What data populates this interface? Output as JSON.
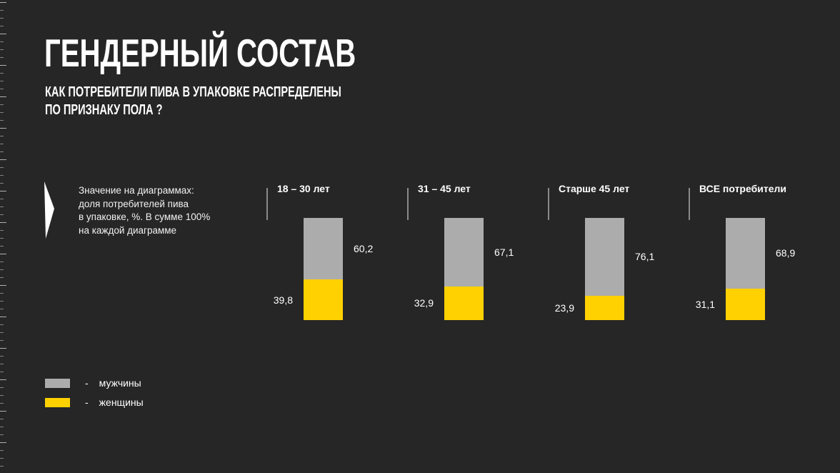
{
  "slide": {
    "title": "ГЕНДЕРНЫЙ СОСТАВ",
    "subtitle": "КАК ПОТРЕБИТЕЛИ ПИВА В УПАКОВКЕ РАСПРЕДЕЛЕНЫ\nПО ПРИЗНАКУ ПОЛА ?",
    "note": "Значение на диаграммах:\nдоля потребителей пива\nв упаковке, %. В сумме 100%\nна каждой диаграмме"
  },
  "colors": {
    "background": "#262626",
    "bar_gray": "#ACACAC",
    "bar_yellow": "#FFD100",
    "text": "#FFFFFF",
    "divider": "#8A8A8A",
    "ruler_tick": "#9A9A9A"
  },
  "chart_data": {
    "type": "bar",
    "variant": "100%-stacked-column",
    "categories": [
      "18 – 30 лет",
      "31 – 45 лет",
      "Старше 45 лет",
      "ВСЕ потребители"
    ],
    "series": [
      {
        "name": "мужчины",
        "color": "#ACACAC",
        "values": [
          60.2,
          67.1,
          76.1,
          68.9
        ]
      },
      {
        "name": "женщины",
        "color": "#FFD100",
        "values": [
          39.8,
          32.9,
          23.9,
          31.1
        ]
      }
    ],
    "value_label_decimal_separator": ",",
    "ylim": [
      0,
      100
    ],
    "grid": false,
    "legend_position": "bottom-left",
    "note": "Значение на диаграммах: доля потребителей пива в упаковке, %. В сумме 100% на каждой диаграмме"
  },
  "legend": {
    "dash": "-",
    "items": [
      {
        "label": "мужчины",
        "color": "#ACACAC"
      },
      {
        "label": "женщины",
        "color": "#FFD100"
      }
    ]
  }
}
